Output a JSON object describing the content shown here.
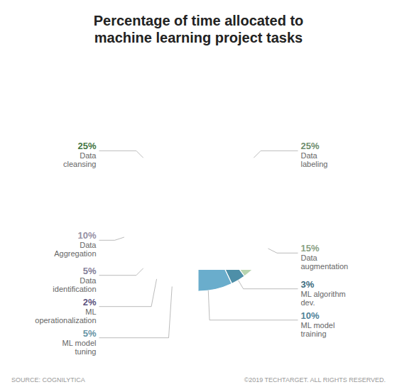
{
  "chart_data": {
    "type": "donut",
    "title": "Percentage of time allocated to\nmachine learning project tasks",
    "categories": [
      "Data\nlabeling",
      "Data\naugmentation",
      "ML algorithm\ndev.",
      "ML model\ntraining",
      "ML model\ntuning",
      "ML\noperationalization",
      "Data\nidentification",
      "Data\nAggregation",
      "Data\ncleansing"
    ],
    "values": [
      25,
      15,
      3,
      10,
      5,
      2,
      5,
      10,
      25
    ],
    "value_labels": [
      "25%",
      "15%",
      "3%",
      "10%",
      "5%",
      "2%",
      "5%",
      "10%",
      "25%"
    ],
    "colors": [
      "#92bc92",
      "#b8d4b0",
      "#4e8fa8",
      "#6aadcc",
      "#88c4dc",
      "#7a6eaa",
      "#b0a8cc",
      "#c8c0dc",
      "#5a9c5a"
    ],
    "data_labels": true,
    "annotations": [
      "SOURCE: COGNILYTICA",
      "©2019 TECHTARGET. ALL RIGHTS RESERVED."
    ]
  }
}
